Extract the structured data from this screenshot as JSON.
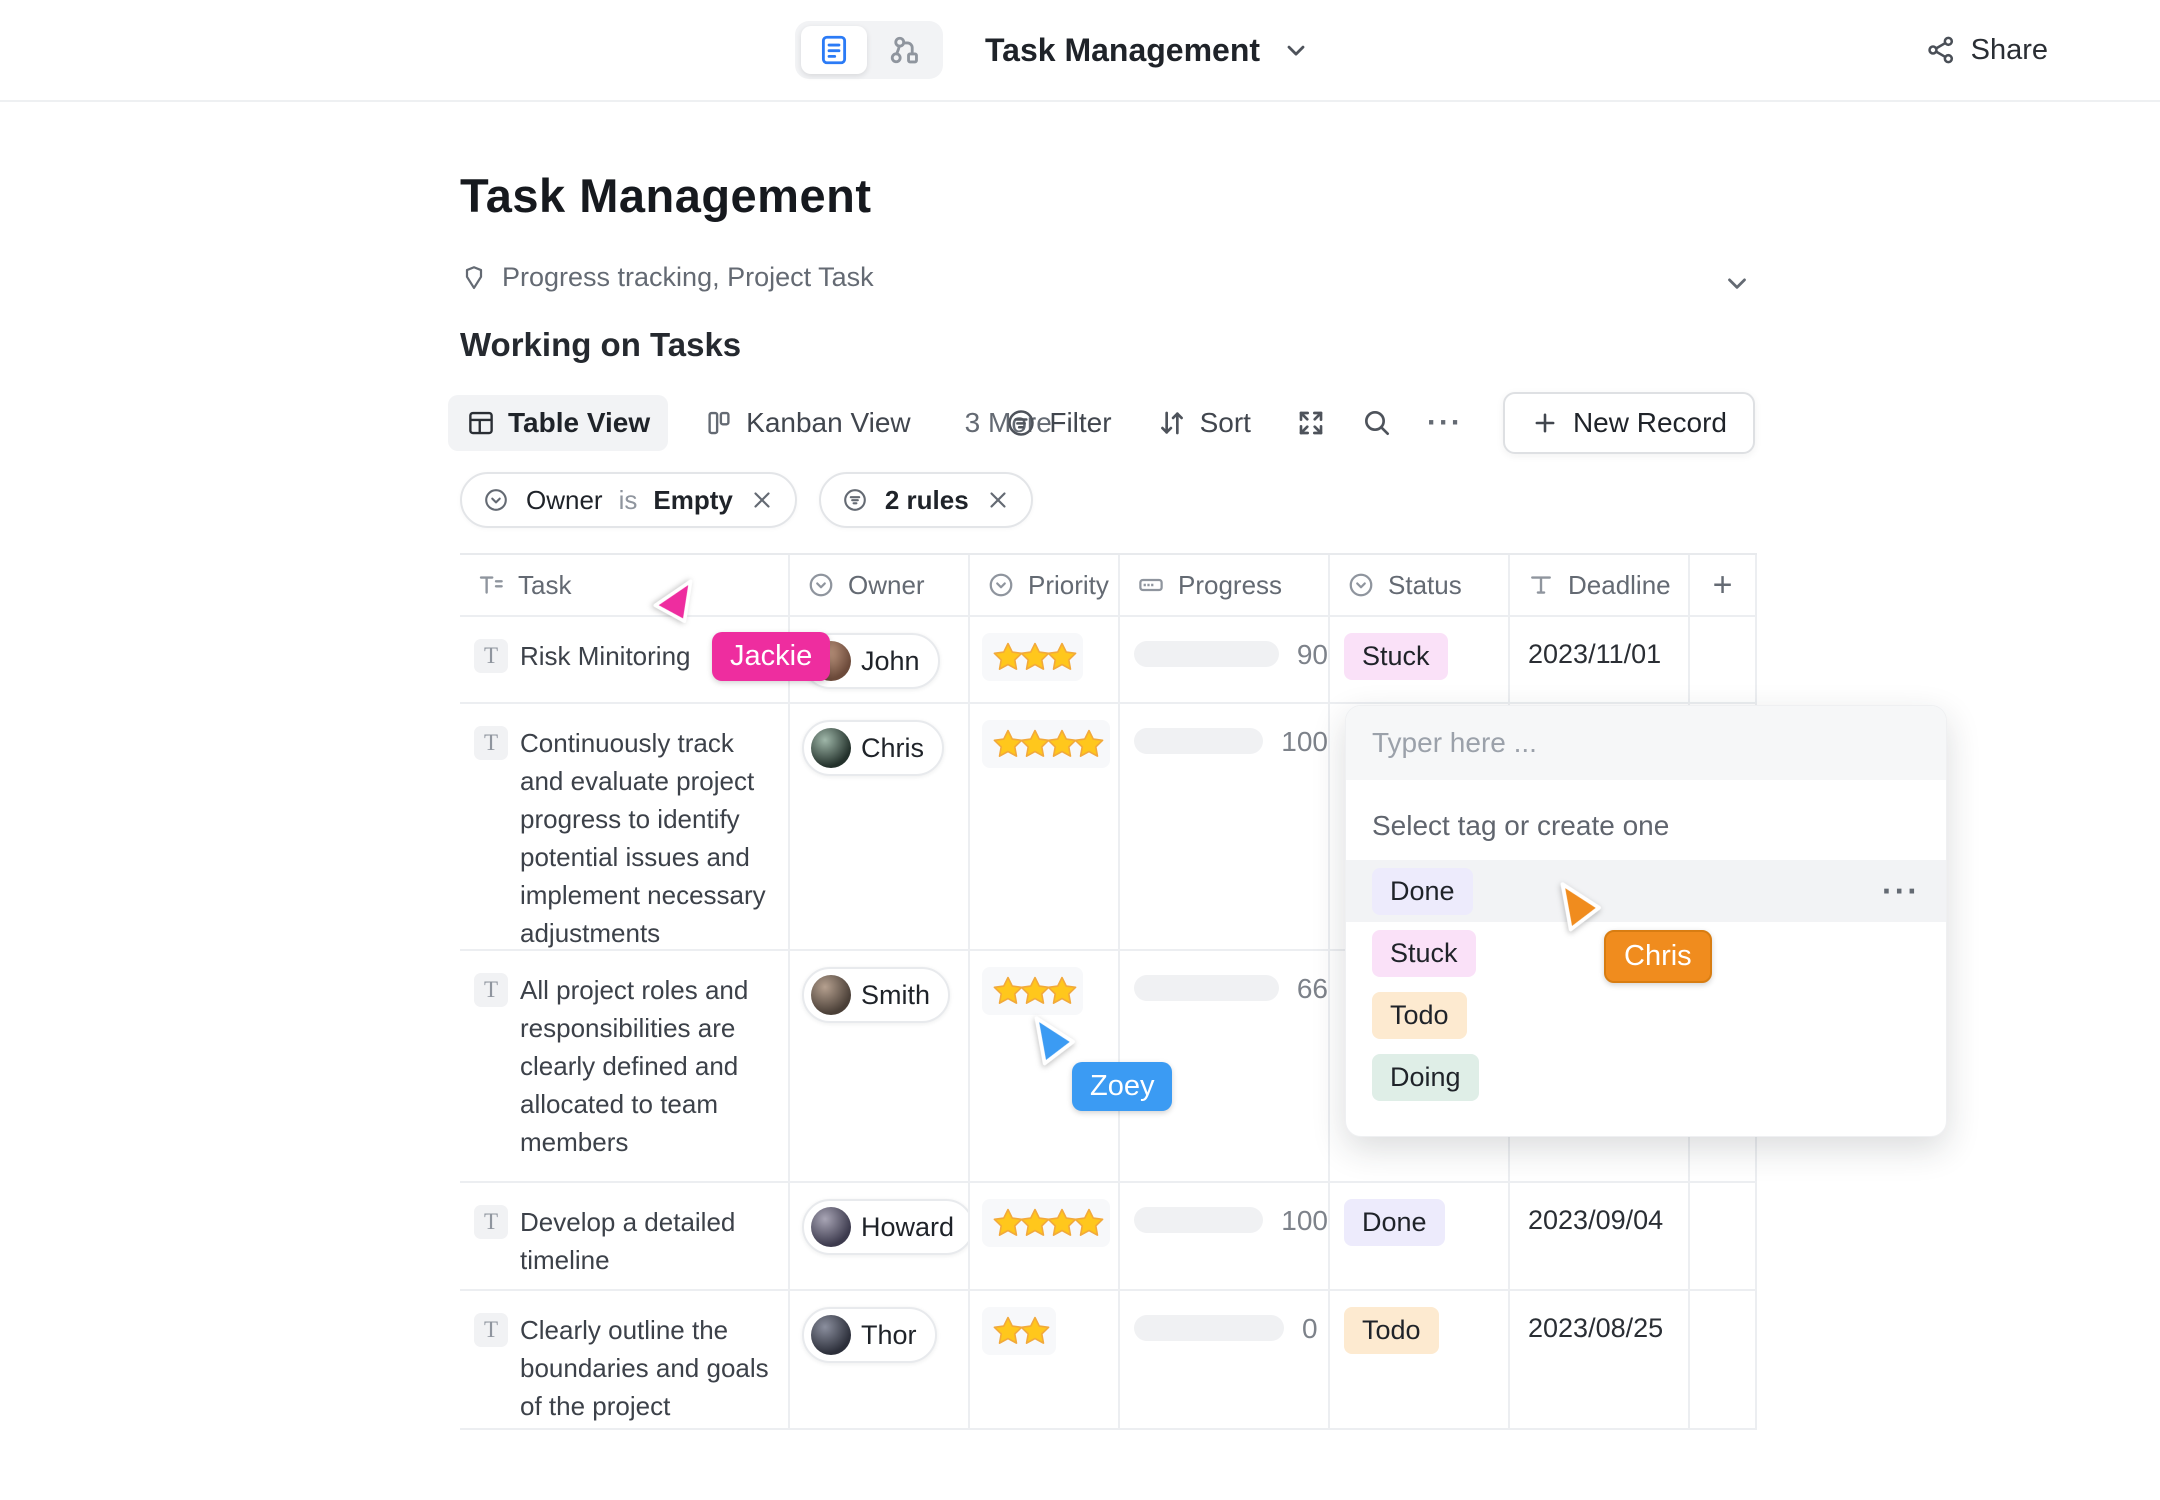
{
  "app": {
    "title": "Task Management",
    "share": "Share"
  },
  "page": {
    "title": "Task Management",
    "tags": "Progress tracking, Project Task",
    "section": "Working on Tasks"
  },
  "toolbar": {
    "views": [
      {
        "label": "Table View",
        "active": true
      },
      {
        "label": "Kanban View",
        "active": false
      },
      {
        "label": "3 More",
        "active": false
      }
    ],
    "filter": "Filter",
    "sort": "Sort",
    "more": "···",
    "new_record": "New Record"
  },
  "filter_chips": [
    {
      "field": "Owner",
      "operator": "is",
      "value": "Empty"
    },
    {
      "label": "2 rules"
    }
  ],
  "table": {
    "columns": [
      {
        "label": "Task",
        "icon": "text-field-icon"
      },
      {
        "label": "Owner",
        "icon": "select-field-icon"
      },
      {
        "label": "Priority",
        "icon": "select-field-icon"
      },
      {
        "label": "Progress",
        "icon": "progress-field-icon"
      },
      {
        "label": "Status",
        "icon": "select-field-icon"
      },
      {
        "label": "Deadline",
        "icon": "text-field-icon"
      },
      {
        "label": "+",
        "icon": "add-column-icon"
      }
    ],
    "rows": [
      {
        "task": "Risk Minitoring",
        "owner": "John",
        "stars": 3,
        "progress": 90,
        "bar_color": "#3370f4",
        "status": "Stuck",
        "status_bg": "#fae1f8",
        "deadline": "2023/11/01"
      },
      {
        "task": "Continuously track and evaluate project progress to identify potential issues and implement necessary adjustments",
        "owner": "Chris",
        "stars": 4,
        "progress": 100,
        "bar_color": "#23c27f",
        "status": "",
        "status_bg": "",
        "deadline": ""
      },
      {
        "task": "All project roles and responsibilities are clearly defined and allocated to team members",
        "owner": "Smith",
        "stars": 3,
        "progress": 66,
        "bar_color": "#3370f4",
        "status": "",
        "status_bg": "",
        "deadline": ""
      },
      {
        "task": "Develop a detailed timeline",
        "owner": "Howard",
        "stars": 4,
        "progress": 100,
        "bar_color": "#23c27f",
        "status": "Done",
        "status_bg": "#edebfc",
        "deadline": "2023/09/04"
      },
      {
        "task": "Clearly outline the boundaries and goals of the project",
        "owner": "Thor",
        "stars": 2,
        "progress": 0,
        "bar_color": "",
        "status": "Todo",
        "status_bg": "#fdead0",
        "deadline": "2023/08/25"
      }
    ]
  },
  "tag_popup": {
    "placeholder": "Typer here ...",
    "hint": "Select tag or create one",
    "more": "···",
    "options": [
      {
        "label": "Done",
        "bg": "#edebfc",
        "hover": true
      },
      {
        "label": "Stuck",
        "bg": "#fae1f8",
        "hover": false
      },
      {
        "label": "Todo",
        "bg": "#fdead0",
        "hover": false
      },
      {
        "label": "Doing",
        "bg": "#dfeee7",
        "hover": false
      }
    ]
  },
  "cursors": [
    {
      "name": "Jackie",
      "color": "#ee2d9f"
    },
    {
      "name": "Zoey",
      "color": "#3b9bf3"
    },
    {
      "name": "Chris",
      "color": "#f08c1e",
      "border": "#d87d12"
    }
  ]
}
